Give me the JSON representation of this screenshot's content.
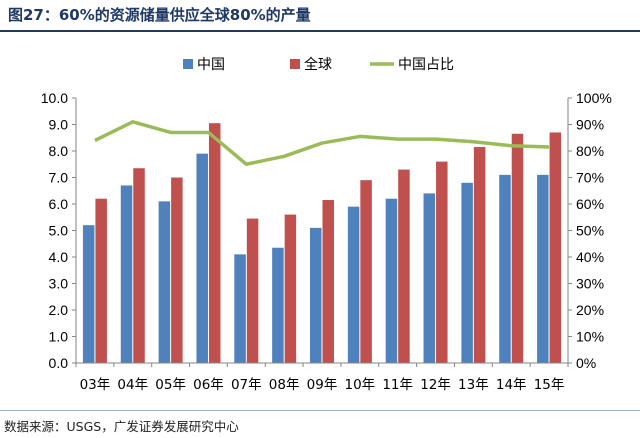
{
  "header": {
    "title": "图27：60%的资源储量供应全球80%的产量"
  },
  "footer": {
    "source": "数据来源：USGS，广发证券发展研究中心"
  },
  "colors": {
    "china_bar": "#4f81bd",
    "global_bar": "#c0504d",
    "share_line": "#9bbb59",
    "title": "#1f3864"
  },
  "chart_data": {
    "type": "bar",
    "categories": [
      "03年",
      "04年",
      "05年",
      "06年",
      "07年",
      "08年",
      "09年",
      "10年",
      "11年",
      "12年",
      "13年",
      "14年",
      "15年"
    ],
    "series": [
      {
        "name": "中国",
        "type": "bar",
        "axis": "left",
        "values": [
          5.2,
          6.7,
          6.1,
          7.9,
          4.1,
          4.35,
          5.1,
          5.9,
          6.2,
          6.4,
          6.8,
          7.1,
          7.1
        ]
      },
      {
        "name": "全球",
        "type": "bar",
        "axis": "left",
        "values": [
          6.2,
          7.35,
          7.0,
          9.05,
          5.45,
          5.6,
          6.15,
          6.9,
          7.3,
          7.6,
          8.15,
          8.65,
          8.7
        ]
      },
      {
        "name": "中国占比",
        "type": "line",
        "axis": "right",
        "values": [
          0.84,
          0.91,
          0.87,
          0.87,
          0.75,
          0.78,
          0.83,
          0.855,
          0.845,
          0.845,
          0.835,
          0.82,
          0.815
        ]
      }
    ],
    "left_axis": {
      "ylim": [
        0,
        10
      ],
      "tick_labels": [
        "0.0",
        "1.0",
        "2.0",
        "3.0",
        "4.0",
        "5.0",
        "6.0",
        "7.0",
        "8.0",
        "9.0",
        "10.0"
      ]
    },
    "right_axis": {
      "ylim": [
        0,
        1
      ],
      "tick_labels": [
        "0%",
        "10%",
        "20%",
        "30%",
        "40%",
        "50%",
        "60%",
        "70%",
        "80%",
        "90%",
        "100%"
      ]
    },
    "grid": false,
    "legend_position": "top-center"
  }
}
